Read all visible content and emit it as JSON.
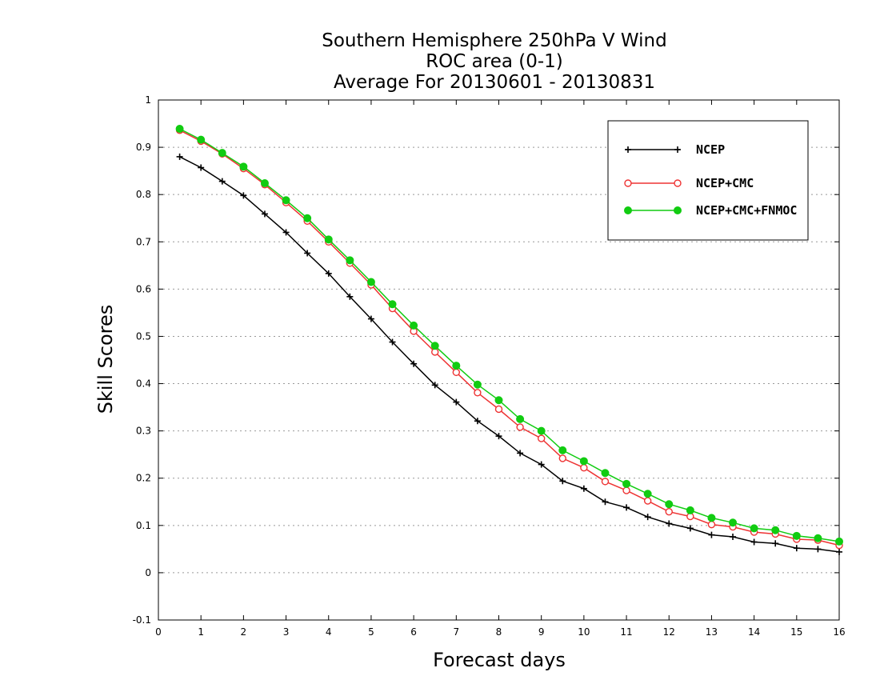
{
  "chart_data": {
    "type": "line",
    "title_lines": [
      "Southern Hemisphere 250hPa V Wind",
      "ROC area (0-1)",
      "Average For 20130601 - 20130831"
    ],
    "xlabel": "Forecast days",
    "ylabel": "Skill Scores",
    "xlim": [
      0,
      16
    ],
    "ylim": [
      -0.1,
      1
    ],
    "x_ticks": [
      0,
      1,
      2,
      3,
      4,
      5,
      6,
      7,
      8,
      9,
      10,
      11,
      12,
      13,
      14,
      15,
      16
    ],
    "y_ticks": [
      -0.1,
      0,
      0.1,
      0.2,
      0.3,
      0.4,
      0.5,
      0.6,
      0.7,
      0.8,
      0.9,
      1
    ],
    "y_tick_labels": [
      "-0.1",
      "0",
      "0.1",
      "0.2",
      "0.3",
      "0.4",
      "0.5",
      "0.6",
      "0.7",
      "0.8",
      "0.9",
      "1"
    ],
    "grid": "horizontal dotted",
    "legend_position": "top-right",
    "x": [
      0.5,
      1,
      1.5,
      2,
      2.5,
      3,
      3.5,
      4,
      4.5,
      5,
      5.5,
      6,
      6.5,
      7,
      7.5,
      8,
      8.5,
      9,
      9.5,
      10,
      10.5,
      11,
      11.5,
      12,
      12.5,
      13,
      13.5,
      14,
      14.5,
      15,
      15.5,
      16
    ],
    "series": [
      {
        "name": "NCEP",
        "color": "#000000",
        "marker": "plus",
        "values": [
          0.88,
          0.857,
          0.828,
          0.798,
          0.759,
          0.72,
          0.676,
          0.633,
          0.584,
          0.537,
          0.488,
          0.442,
          0.397,
          0.361,
          0.321,
          0.289,
          0.253,
          0.229,
          0.194,
          0.178,
          0.15,
          0.138,
          0.118,
          0.104,
          0.094,
          0.08,
          0.076,
          0.065,
          0.062,
          0.052,
          0.05,
          0.044
        ]
      },
      {
        "name": "NCEP+CMC",
        "color": "#ee3333",
        "marker": "open-circle",
        "values": [
          0.936,
          0.913,
          0.886,
          0.855,
          0.821,
          0.783,
          0.744,
          0.7,
          0.655,
          0.609,
          0.559,
          0.511,
          0.467,
          0.424,
          0.381,
          0.346,
          0.308,
          0.284,
          0.242,
          0.222,
          0.193,
          0.174,
          0.152,
          0.129,
          0.119,
          0.102,
          0.097,
          0.086,
          0.082,
          0.071,
          0.069,
          0.058
        ]
      },
      {
        "name": "NCEP+CMC+FNMOC",
        "color": "#11cc11",
        "marker": "filled-circle",
        "values": [
          0.939,
          0.916,
          0.888,
          0.859,
          0.824,
          0.788,
          0.75,
          0.705,
          0.661,
          0.615,
          0.568,
          0.523,
          0.48,
          0.438,
          0.398,
          0.365,
          0.325,
          0.3,
          0.259,
          0.236,
          0.211,
          0.188,
          0.167,
          0.145,
          0.132,
          0.116,
          0.106,
          0.094,
          0.09,
          0.078,
          0.073,
          0.066
        ]
      }
    ]
  }
}
